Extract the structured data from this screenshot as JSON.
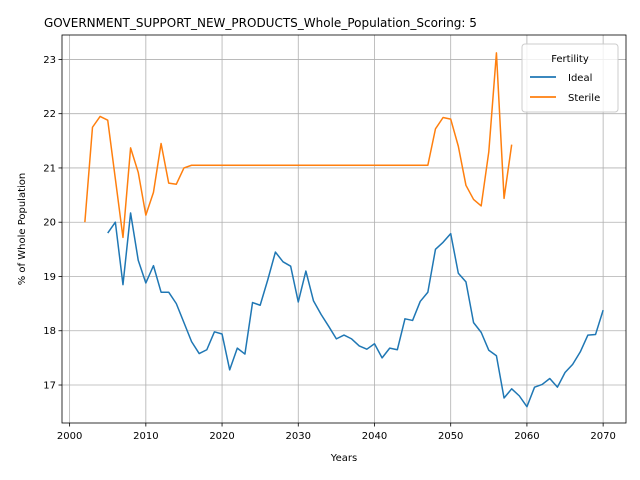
{
  "chart_data": {
    "type": "line",
    "title": "GOVERNMENT_SUPPORT_NEW_PRODUCTS_Whole_Population_Scoring: 5",
    "xlabel": "Years",
    "ylabel": "% of Whole Population",
    "xlim": [
      1999,
      2073
    ],
    "ylim": [
      16.3,
      23.45
    ],
    "xticks": [
      2000,
      2010,
      2020,
      2030,
      2040,
      2050,
      2060,
      2070
    ],
    "yticks": [
      17,
      18,
      19,
      20,
      21,
      22,
      23
    ],
    "grid": true,
    "legend": {
      "title": "Fertility",
      "position": "top-right"
    },
    "series": [
      {
        "name": "Ideal",
        "color": "#1f77b4",
        "x": [
          2005,
          2006,
          2007,
          2008,
          2009,
          2010,
          2011,
          2012,
          2013,
          2014,
          2015,
          2016,
          2017,
          2018,
          2019,
          2020,
          2021,
          2022,
          2023,
          2024,
          2025,
          2026,
          2027,
          2028,
          2029,
          2030,
          2031,
          2032,
          2033,
          2034,
          2035,
          2036,
          2037,
          2038,
          2039,
          2040,
          2041,
          2042,
          2043,
          2044,
          2045,
          2046,
          2047,
          2048,
          2049,
          2050,
          2051,
          2052,
          2053,
          2054,
          2055,
          2056,
          2057,
          2058,
          2059,
          2060,
          2061,
          2062,
          2063,
          2064,
          2065,
          2066,
          2067,
          2068,
          2069,
          2070
        ],
        "y": [
          19.8,
          20.0,
          18.85,
          20.17,
          19.3,
          18.88,
          19.2,
          18.71,
          18.71,
          18.5,
          18.15,
          17.8,
          17.58,
          17.65,
          17.98,
          17.94,
          17.28,
          17.68,
          17.57,
          18.52,
          18.47,
          18.94,
          19.45,
          19.27,
          19.19,
          18.53,
          19.1,
          18.55,
          18.3,
          18.08,
          17.85,
          17.92,
          17.85,
          17.72,
          17.66,
          17.76,
          17.5,
          17.68,
          17.65,
          18.22,
          18.19,
          18.54,
          18.71,
          19.5,
          19.63,
          19.79,
          19.06,
          18.9,
          18.15,
          17.97,
          17.64,
          17.54,
          16.76,
          16.93,
          16.8,
          16.6,
          16.96,
          17.01,
          17.12,
          16.96,
          17.23,
          17.38,
          17.61,
          17.92,
          17.93,
          18.38
        ]
      },
      {
        "name": "Sterile",
        "color": "#ff7f0e",
        "x": [
          2002,
          2003,
          2004,
          2005,
          2006,
          2007,
          2008,
          2009,
          2010,
          2011,
          2012,
          2013,
          2014,
          2015,
          2016,
          2017,
          2018,
          2019,
          2020,
          2021,
          2022,
          2023,
          2024,
          2025,
          2026,
          2027,
          2028,
          2029,
          2030,
          2031,
          2032,
          2033,
          2034,
          2035,
          2036,
          2037,
          2038,
          2039,
          2040,
          2041,
          2042,
          2043,
          2044,
          2045,
          2046,
          2047,
          2048,
          2049,
          2050,
          2051,
          2052,
          2053,
          2054,
          2055,
          2056,
          2057,
          2058
        ],
        "y": [
          20.0,
          21.75,
          21.95,
          21.88,
          20.8,
          19.72,
          21.37,
          20.92,
          20.13,
          20.55,
          21.45,
          20.72,
          20.7,
          21.0,
          21.05,
          21.05,
          21.05,
          21.05,
          21.05,
          21.05,
          21.05,
          21.05,
          21.05,
          21.05,
          21.05,
          21.05,
          21.05,
          21.05,
          21.05,
          21.05,
          21.05,
          21.05,
          21.05,
          21.05,
          21.05,
          21.05,
          21.05,
          21.05,
          21.05,
          21.05,
          21.05,
          21.05,
          21.05,
          21.05,
          21.05,
          21.05,
          21.72,
          21.93,
          21.9,
          21.4,
          20.68,
          20.42,
          20.3,
          21.3,
          23.12,
          20.44,
          21.43
        ]
      }
    ]
  }
}
